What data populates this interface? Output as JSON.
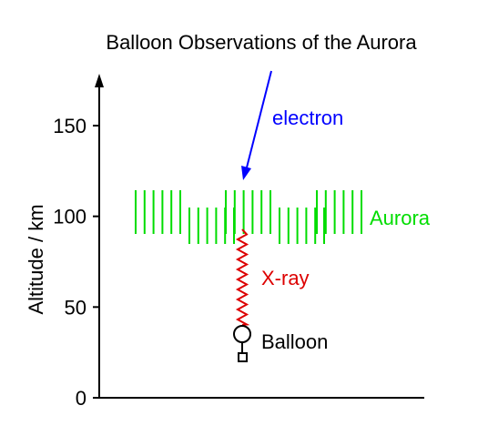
{
  "title": "Balloon Observations of the Aurora",
  "y_axis": {
    "label": "Altitude / km",
    "ticks": [
      0,
      50,
      100,
      150
    ],
    "range": [
      0,
      175
    ]
  },
  "labels": {
    "electron": "electron",
    "aurora": "Aurora",
    "xray": "X-ray",
    "balloon": "Balloon"
  },
  "colors": {
    "electron": "#0000ff",
    "aurora": "#00dd00",
    "xray": "#dd0000",
    "axis": "#000000"
  }
}
